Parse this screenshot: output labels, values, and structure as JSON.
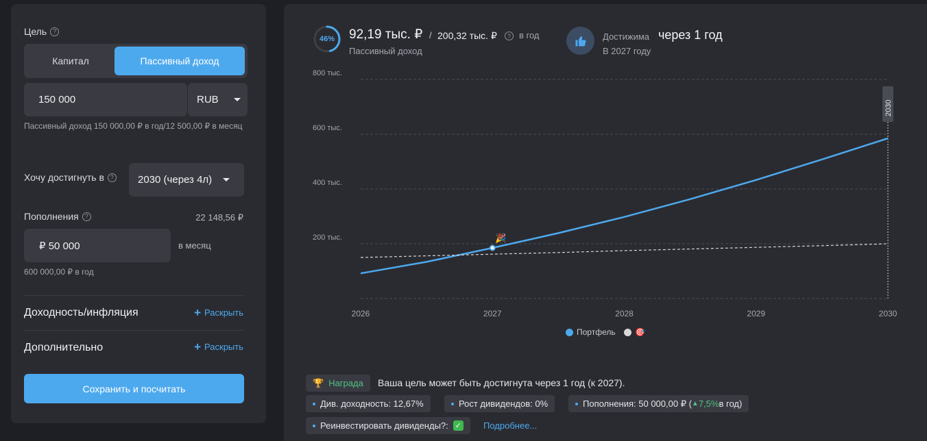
{
  "left": {
    "goal_label": "Цель",
    "segment": {
      "options": [
        "Капитал",
        "Пассивный доход"
      ],
      "active": "Пассивный доход"
    },
    "amount": {
      "value": "150 000",
      "currency": "RUB"
    },
    "amount_hint": "Пассивный доход 150 000,00 ₽ в год/12 500,00 ₽ в месяц",
    "reach_label": "Хочу достигнуть в",
    "reach_select": "2030 (через 4л)",
    "topups_label": "Пополнения",
    "topups_total": "22 148,56 ₽",
    "topups_value": "₽ 50 000",
    "topups_period": "в месяц",
    "topups_hint": "600 000,00 ₽ в год",
    "yield_section": "Доходность/инфляция",
    "extra_section": "Дополнительно",
    "expand_label": "Раскрыть",
    "save_label": "Сохранить и посчитать"
  },
  "summary": {
    "progress_pct": 46,
    "progress_label": "46%",
    "current": "92,19 тыс. ₽",
    "separator": "/",
    "target": "200,32 тыс. ₽",
    "period": "в год",
    "current_caption": "Пассивный доход",
    "reach_prefix": "Достижима",
    "reach_main": "через 1 год",
    "reach_caption": "В 2027 году"
  },
  "chart_data": {
    "type": "line",
    "x": [
      2026,
      2026.5,
      2027,
      2027.5,
      2028,
      2028.5,
      2029,
      2029.5,
      2030
    ],
    "xticks": [
      "2026",
      "2027",
      "2028",
      "2029",
      "2030"
    ],
    "ytick_labels": [
      "200 тыс.",
      "400 тыс.",
      "600 тыс.",
      "800 тыс."
    ],
    "yticks": [
      200000,
      400000,
      600000,
      800000
    ],
    "ylim": [
      0,
      800000
    ],
    "series": [
      {
        "name": "Портфель",
        "color": "#4da9ee",
        "values": [
          92000,
          134000,
          185000,
          239000,
          298000,
          363000,
          433000,
          508000,
          585000
        ]
      },
      {
        "name": "",
        "color": "#d8d8d8",
        "dashed": true,
        "values": [
          150000,
          156000,
          162000,
          168000,
          175000,
          181000,
          187000,
          193000,
          200000
        ]
      }
    ],
    "marker_year": "2030",
    "milestone_x": 2027,
    "milestone_icon": "party-popper-icon",
    "target_icon": "target-icon"
  },
  "bottom": {
    "reward_label": "Награда",
    "reward_text": "Ваша цель может быть достигнута через 1 год (к 2027).",
    "chip_yield": "Див. доходность: 12,67%",
    "chip_growth": "Рост дивидендов: 0%",
    "chip_topups_prefix": "Пополнения: 50 000,00 ₽ (",
    "chip_topups_rate": "7,5%",
    "chip_topups_suffix": " в год)",
    "chip_reinvest": "Реинвестировать дивиденды?:",
    "more_link": "Подробнее..."
  }
}
